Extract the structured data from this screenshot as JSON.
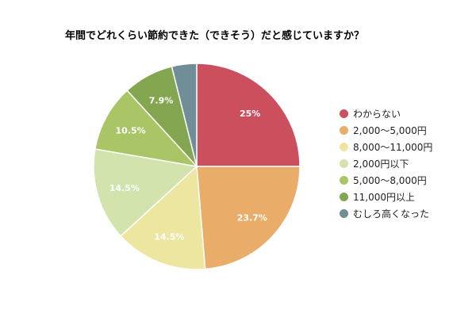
{
  "chart_data": {
    "type": "pie",
    "title": "年間でどれくらい節約できた（できそう）だと感じていますか？",
    "categories": [
      "わからない",
      "2,000〜5,000円",
      "8,000〜11,000円",
      "2,000円以下",
      "5,000〜8,000円",
      "11,000円以上",
      "むしろ高くなった"
    ],
    "values": [
      25.0,
      23.7,
      14.5,
      14.5,
      10.5,
      7.9,
      3.9
    ],
    "data_labels": [
      "25%",
      "23.7%",
      "14.5%",
      "14.5%",
      "10.5%",
      "7.9%",
      ""
    ],
    "colors": [
      "#cc4f5e",
      "#e9ad69",
      "#ede6a1",
      "#d3e3ad",
      "#aac566",
      "#84a651",
      "#6f8e98"
    ],
    "legend_position": "right"
  }
}
